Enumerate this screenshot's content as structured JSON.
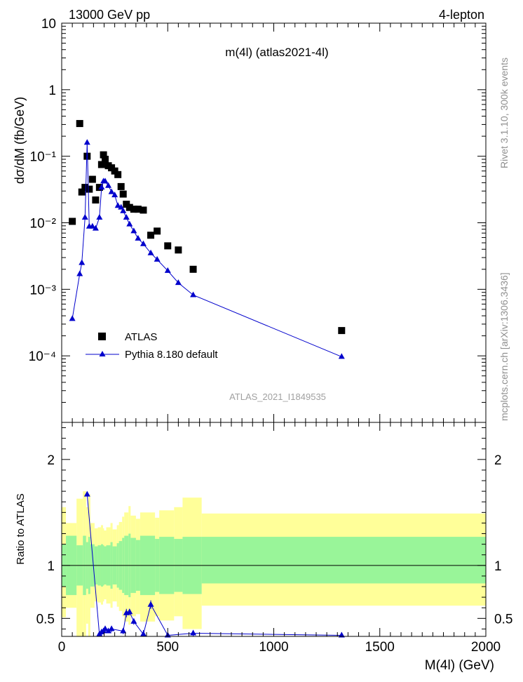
{
  "header": {
    "left": "13000 GeV pp",
    "right": "4-lepton"
  },
  "side_labels": {
    "top": "Rivet 3.1.10,  300k events",
    "bottom": "mcplots.cern.ch [arXiv:1306.3436]"
  },
  "chart_data": [
    {
      "type": "scatter",
      "title": "m(4l) (atlas2021-4l)",
      "watermark": "ATLAS_2021_I1849535",
      "xlabel": "",
      "ylabel": "dσ/dM (fb/GeV)",
      "log_y": true,
      "xlim": [
        0,
        2000
      ],
      "ylim": [
        1e-05,
        10
      ],
      "y_tick_labels": [
        "10",
        "1",
        "10⁻¹",
        "10⁻²",
        "10⁻³",
        "10⁻⁴"
      ],
      "legend_position": "lower-left",
      "series": [
        {
          "name": "ATLAS",
          "color": "#000000",
          "marker": "square",
          "x": [
            50,
            85,
            95,
            110,
            120,
            130,
            145,
            160,
            178,
            188,
            197,
            205,
            220,
            235,
            250,
            265,
            280,
            290,
            305,
            320,
            340,
            360,
            385,
            420,
            450,
            500,
            550,
            620,
            1320
          ],
          "y": [
            0.0105,
            0.31,
            0.029,
            0.034,
            0.1,
            0.032,
            0.045,
            0.022,
            0.034,
            0.075,
            0.105,
            0.09,
            0.072,
            0.067,
            0.06,
            0.053,
            0.035,
            0.027,
            0.019,
            0.017,
            0.016,
            0.016,
            0.0155,
            0.0065,
            0.0075,
            0.0045,
            0.0039,
            0.002,
            0.00024
          ]
        },
        {
          "name": "Pythia 8.180 default",
          "color": "#0000cc",
          "marker": "triangle",
          "x": [
            50,
            85,
            95,
            110,
            120,
            130,
            145,
            160,
            178,
            188,
            197,
            205,
            220,
            235,
            250,
            265,
            280,
            290,
            305,
            320,
            340,
            360,
            385,
            420,
            450,
            500,
            550,
            620,
            1320
          ],
          "y": [
            0.00036,
            0.0017,
            0.0025,
            0.012,
            0.16,
            0.0088,
            0.0088,
            0.0082,
            0.012,
            0.034,
            0.042,
            0.042,
            0.036,
            0.029,
            0.026,
            0.018,
            0.017,
            0.015,
            0.012,
            0.0095,
            0.0075,
            0.0058,
            0.0048,
            0.0035,
            0.0028,
            0.0019,
            0.00125,
            0.00082,
            9.7e-05
          ]
        }
      ]
    },
    {
      "type": "line",
      "title": "",
      "xlabel": "M(4l) (GeV)",
      "ylabel": "Ratio to ATLAS",
      "xlim": [
        0,
        2000
      ],
      "ylim": [
        0.33,
        2.35
      ],
      "x_tick_labels": [
        "0",
        "500",
        "1000",
        "1500",
        "2000"
      ],
      "y_tick_labels": [
        "2",
        "1",
        "0.5"
      ],
      "reference_line": 1,
      "band_colors": {
        "stat": "#99f599",
        "total": "#ffff99"
      },
      "bands": {
        "edges": [
          0,
          20,
          70,
          100,
          115,
          125,
          135,
          155,
          170,
          185,
          195,
          200,
          210,
          230,
          240,
          260,
          270,
          285,
          295,
          315,
          325,
          350,
          370,
          400,
          440,
          460,
          530,
          570,
          660,
          2000
        ],
        "stat_low": [
          0.8,
          0.72,
          0.81,
          0.72,
          0.78,
          0.73,
          0.8,
          0.82,
          0.81,
          0.8,
          0.81,
          0.82,
          0.81,
          0.78,
          0.82,
          0.79,
          0.77,
          0.74,
          0.72,
          0.7,
          0.74,
          0.76,
          0.72,
          0.72,
          0.75,
          0.73,
          0.75,
          0.73,
          0.83
        ],
        "stat_high": [
          1.2,
          1.28,
          1.19,
          1.28,
          1.22,
          1.27,
          1.2,
          1.18,
          1.19,
          1.2,
          1.19,
          1.18,
          1.19,
          1.22,
          1.18,
          1.21,
          1.23,
          1.26,
          1.28,
          1.3,
          1.26,
          1.24,
          1.28,
          1.28,
          1.25,
          1.27,
          1.25,
          1.27,
          1.27
        ],
        "total_low": [
          0.51,
          0.6,
          0.33,
          0.33,
          0.45,
          0.33,
          0.6,
          0.66,
          0.65,
          0.63,
          0.66,
          0.68,
          0.64,
          0.6,
          0.66,
          0.61,
          0.57,
          0.52,
          0.47,
          0.44,
          0.52,
          0.54,
          0.47,
          0.47,
          0.52,
          0.48,
          0.52,
          0.4,
          0.62
        ],
        "total_high": [
          1.55,
          1.4,
          1.63,
          1.7,
          1.55,
          1.67,
          1.4,
          1.35,
          1.36,
          1.38,
          1.35,
          1.33,
          1.36,
          1.4,
          1.34,
          1.38,
          1.41,
          1.46,
          1.5,
          1.56,
          1.47,
          1.44,
          1.5,
          1.5,
          1.45,
          1.52,
          1.55,
          1.64,
          1.49
        ]
      },
      "series": [
        {
          "name": "",
          "color": "#0000cc",
          "marker": "triangle",
          "x": [
            120,
            178,
            188,
            197,
            205,
            220,
            235,
            290,
            305,
            320,
            340,
            385,
            420,
            500,
            620,
            1320
          ],
          "y": [
            1.67,
            0.35,
            0.37,
            0.38,
            0.4,
            0.38,
            0.4,
            0.38,
            0.55,
            0.56,
            0.47,
            0.35,
            0.63,
            0.34,
            0.36,
            0.34
          ],
          "err": [
            0,
            0.03,
            0.03,
            0.02,
            0.03,
            0.02,
            0.03,
            0.03,
            0.04,
            0.03,
            0.03,
            0.04,
            0.04,
            0.02,
            0.03,
            0.03
          ]
        }
      ]
    }
  ]
}
